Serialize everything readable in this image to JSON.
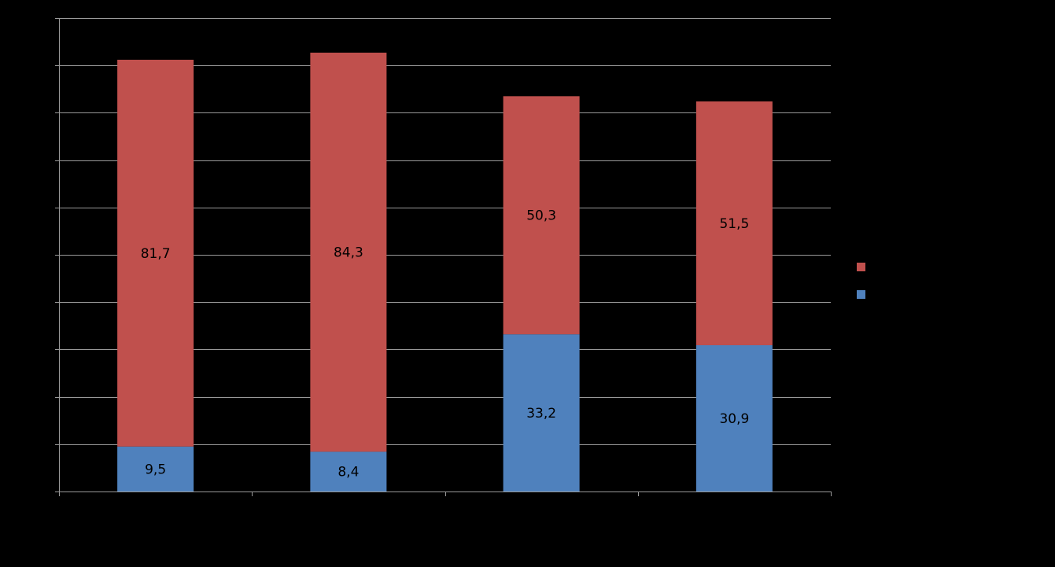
{
  "chart_data": {
    "type": "bar",
    "stacked": true,
    "categories": [
      "",
      "",
      "",
      ""
    ],
    "series": [
      {
        "values": [
          9.5,
          8.4,
          33.2,
          30.9
        ],
        "color": "#4F81BD"
      },
      {
        "values": [
          81.7,
          84.3,
          50.3,
          51.5
        ],
        "color": "#C0504D"
      }
    ],
    "data_labels": [
      [
        "9,5",
        "8,4",
        "33,2",
        "30,9"
      ],
      [
        "81,7",
        "84,3",
        "50,3",
        "51,5"
      ]
    ],
    "ylim": [
      0,
      100
    ],
    "ytick_step": 10,
    "grid": true,
    "legend_position": "right",
    "background": "#000000",
    "gridline_color": "#9a9a9a",
    "axis_color": "#9a9a9a",
    "label_color": "#000000"
  }
}
